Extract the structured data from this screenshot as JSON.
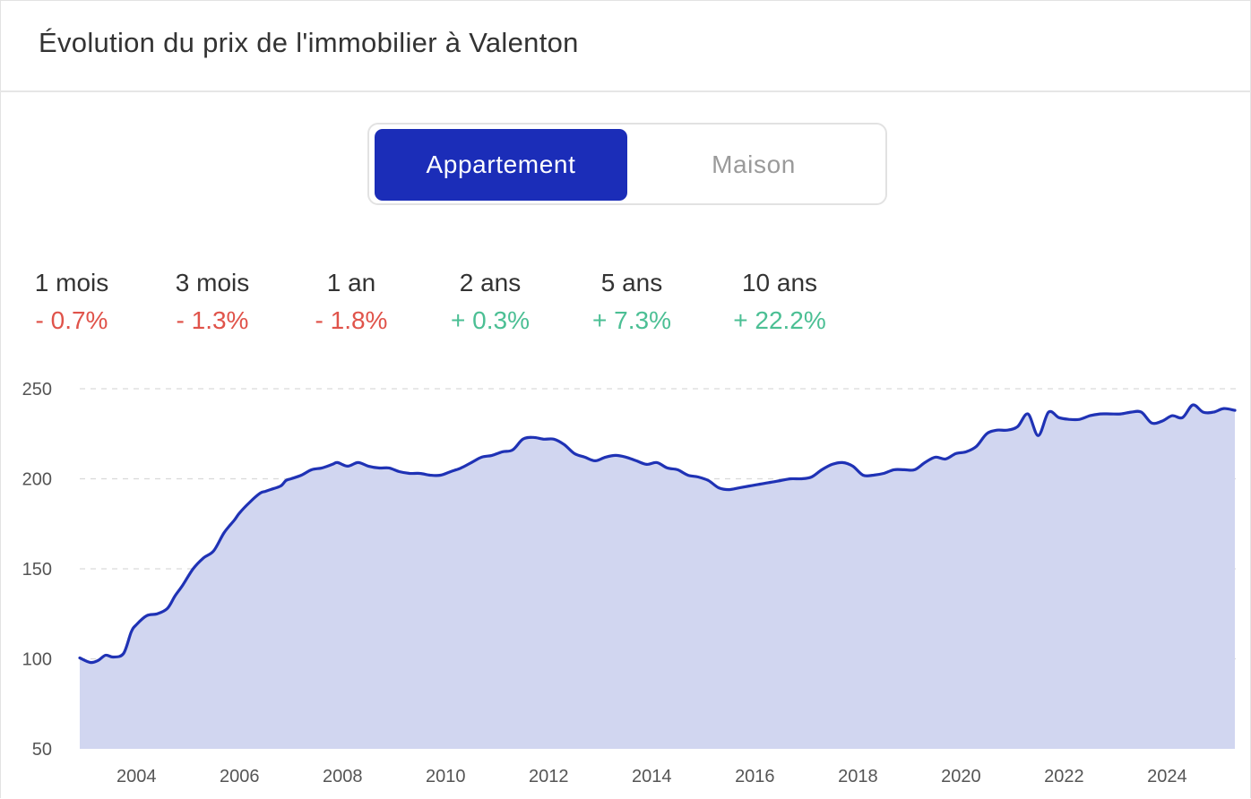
{
  "header": {
    "title": "Évolution du prix de l'immobilier à Valenton"
  },
  "toggle": {
    "options": [
      "Appartement",
      "Maison"
    ],
    "selected": "Appartement"
  },
  "stats": [
    {
      "period": "1 mois",
      "change": "- 0.7%",
      "trend": "negative"
    },
    {
      "period": "3 mois",
      "change": "- 1.3%",
      "trend": "negative"
    },
    {
      "period": "1 an",
      "change": "- 1.8%",
      "trend": "negative"
    },
    {
      "period": "2 ans",
      "change": "+ 0.3%",
      "trend": "positive"
    },
    {
      "period": "5 ans",
      "change": "+ 7.3%",
      "trend": "positive"
    },
    {
      "period": "10 ans",
      "change": "+ 22.2%",
      "trend": "positive"
    }
  ],
  "colors": {
    "accent": "#1b2db8",
    "line": "#1f32b5",
    "area_fill": "#d1d6f0",
    "negative": "#e0534a",
    "positive": "#4bbf94"
  },
  "chart_data": {
    "type": "area",
    "title": "",
    "xlabel": "",
    "ylabel": "",
    "xlim": [
      2002.9,
      2025.35
    ],
    "ylim": [
      50,
      250
    ],
    "yticks": [
      50,
      100,
      150,
      200,
      250
    ],
    "xticks": [
      2004,
      2006,
      2008,
      2010,
      2012,
      2014,
      2016,
      2018,
      2020,
      2022,
      2024
    ],
    "grid": "horizontal-dashed",
    "legend": "none",
    "series": [
      {
        "name": "",
        "x": [
          2002.95,
          2003.1,
          2003.25,
          2003.4,
          2003.55,
          2003.75,
          2003.9,
          2004.0,
          2004.2,
          2004.4,
          2004.6,
          2004.75,
          2004.9,
          2005.1,
          2005.3,
          2005.5,
          2005.7,
          2005.9,
          2006.0,
          2006.2,
          2006.4,
          2006.5,
          2006.6,
          2006.8,
          2006.9,
          2007.0,
          2007.2,
          2007.4,
          2007.6,
          2007.8,
          2007.9,
          2008.1,
          2008.3,
          2008.5,
          2008.7,
          2008.9,
          2009.1,
          2009.3,
          2009.5,
          2009.7,
          2009.9,
          2010.1,
          2010.3,
          2010.5,
          2010.7,
          2010.9,
          2011.1,
          2011.3,
          2011.5,
          2011.7,
          2011.9,
          2012.1,
          2012.3,
          2012.5,
          2012.7,
          2012.9,
          2013.1,
          2013.3,
          2013.5,
          2013.7,
          2013.9,
          2014.1,
          2014.3,
          2014.5,
          2014.7,
          2014.9,
          2015.1,
          2015.3,
          2015.5,
          2015.7,
          2015.9,
          2016.1,
          2016.3,
          2016.5,
          2016.7,
          2016.9,
          2017.1,
          2017.3,
          2017.5,
          2017.7,
          2017.9,
          2018.1,
          2018.3,
          2018.5,
          2018.7,
          2018.9,
          2019.1,
          2019.3,
          2019.5,
          2019.7,
          2019.9,
          2020.1,
          2020.3,
          2020.5,
          2020.7,
          2020.9,
          2021.1,
          2021.3,
          2021.5,
          2021.7,
          2021.9,
          2022.1,
          2022.3,
          2022.5,
          2022.7,
          2022.9,
          2023.1,
          2023.3,
          2023.5,
          2023.7,
          2023.9,
          2024.1,
          2024.3,
          2024.5,
          2024.7,
          2024.9,
          2025.1,
          2025.3
        ],
        "y": [
          100.5,
          98,
          99,
          102,
          101,
          103,
          115,
          119,
          124,
          125,
          128,
          135,
          141,
          150,
          156,
          160,
          170,
          177,
          181,
          187,
          192,
          193,
          194,
          196,
          199,
          200,
          202,
          205,
          206,
          208,
          209,
          207,
          209,
          207,
          206,
          206,
          204,
          203,
          203,
          202,
          202,
          204,
          206,
          209,
          212,
          213,
          215,
          216,
          222,
          223,
          222,
          222,
          219,
          214,
          212,
          210,
          212,
          213,
          212,
          210,
          208,
          209,
          206,
          205,
          202,
          201,
          199,
          195,
          194,
          195,
          196,
          197,
          198,
          199,
          200,
          200,
          201,
          205,
          208,
          209,
          207,
          202,
          202,
          203,
          205,
          205,
          205,
          209,
          212,
          211,
          214,
          215,
          218,
          225,
          227,
          227,
          229,
          236,
          224,
          237,
          234,
          233,
          233,
          235,
          236,
          236,
          236,
          237,
          237,
          231,
          232,
          235,
          234,
          241,
          237,
          237,
          239,
          238
        ]
      }
    ]
  }
}
